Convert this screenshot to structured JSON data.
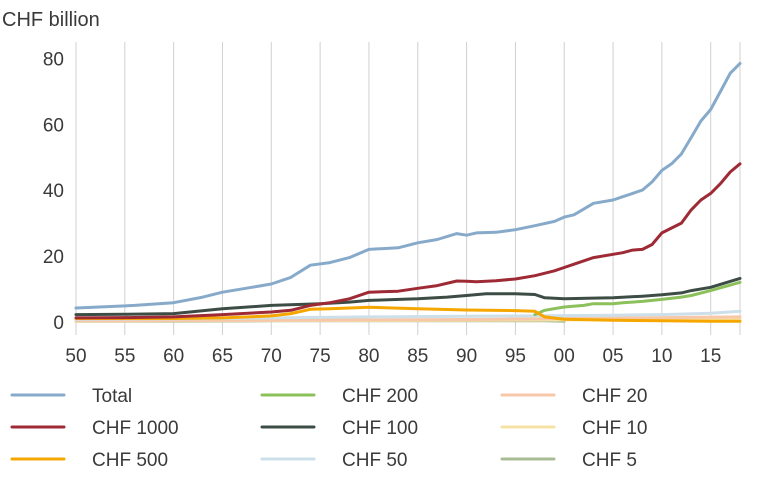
{
  "chart_data": {
    "type": "line",
    "y_unit_label": "CHF billion",
    "xlabel": "",
    "ylabel": "",
    "x_range": [
      1950,
      2018
    ],
    "ylim": [
      -4,
      85
    ],
    "grid": "vertical",
    "legend_position": "bottom",
    "x_ticks": [
      {
        "value": 1950,
        "label": "50"
      },
      {
        "value": 1955,
        "label": "55"
      },
      {
        "value": 1960,
        "label": "60"
      },
      {
        "value": 1965,
        "label": "65"
      },
      {
        "value": 1970,
        "label": "70"
      },
      {
        "value": 1975,
        "label": "75"
      },
      {
        "value": 1980,
        "label": "80"
      },
      {
        "value": 1985,
        "label": "85"
      },
      {
        "value": 1990,
        "label": "90"
      },
      {
        "value": 1995,
        "label": "95"
      },
      {
        "value": 2000,
        "label": "00"
      },
      {
        "value": 2005,
        "label": "05"
      },
      {
        "value": 2010,
        "label": "10"
      },
      {
        "value": 2015,
        "label": "15"
      }
    ],
    "y_ticks": [
      {
        "value": 0,
        "label": "0"
      },
      {
        "value": 20,
        "label": "20"
      },
      {
        "value": 40,
        "label": "40"
      },
      {
        "value": 60,
        "label": "60"
      },
      {
        "value": 80,
        "label": "80"
      }
    ],
    "series": [
      {
        "name": "Total",
        "color": "#87aacb",
        "points": [
          [
            1950,
            4.2
          ],
          [
            1953,
            4.6
          ],
          [
            1956,
            5.0
          ],
          [
            1960,
            5.8
          ],
          [
            1963,
            7.5
          ],
          [
            1965,
            9.0
          ],
          [
            1968,
            10.5
          ],
          [
            1970,
            11.5
          ],
          [
            1972,
            13.5
          ],
          [
            1974,
            17.2
          ],
          [
            1976,
            18.0
          ],
          [
            1978,
            19.5
          ],
          [
            1980,
            22.0
          ],
          [
            1983,
            22.5
          ],
          [
            1985,
            24.0
          ],
          [
            1987,
            25.0
          ],
          [
            1989,
            26.8
          ],
          [
            1990,
            26.3
          ],
          [
            1991,
            27.0
          ],
          [
            1993,
            27.2
          ],
          [
            1995,
            28.0
          ],
          [
            1997,
            29.2
          ],
          [
            1999,
            30.5
          ],
          [
            2000,
            31.8
          ],
          [
            2001,
            32.5
          ],
          [
            2003,
            36.0
          ],
          [
            2005,
            37.0
          ],
          [
            2006,
            38.0
          ],
          [
            2007,
            39.0
          ],
          [
            2008,
            40.0
          ],
          [
            2009,
            42.5
          ],
          [
            2010,
            46.0
          ],
          [
            2011,
            48.0
          ],
          [
            2012,
            51.0
          ],
          [
            2013,
            56.0
          ],
          [
            2014,
            61.0
          ],
          [
            2015,
            64.5
          ],
          [
            2016,
            70.0
          ],
          [
            2017,
            75.5
          ],
          [
            2018,
            78.5
          ]
        ]
      },
      {
        "name": "CHF 1000",
        "color": "#9e2a35",
        "points": [
          [
            1950,
            1.2
          ],
          [
            1955,
            1.3
          ],
          [
            1960,
            1.5
          ],
          [
            1965,
            2.2
          ],
          [
            1970,
            3.0
          ],
          [
            1972,
            3.5
          ],
          [
            1974,
            5.0
          ],
          [
            1976,
            5.8
          ],
          [
            1978,
            7.0
          ],
          [
            1980,
            9.0
          ],
          [
            1983,
            9.3
          ],
          [
            1985,
            10.2
          ],
          [
            1987,
            11.0
          ],
          [
            1989,
            12.4
          ],
          [
            1990,
            12.3
          ],
          [
            1991,
            12.2
          ],
          [
            1993,
            12.5
          ],
          [
            1995,
            13.0
          ],
          [
            1997,
            14.0
          ],
          [
            1999,
            15.5
          ],
          [
            2000,
            16.5
          ],
          [
            2001,
            17.5
          ],
          [
            2003,
            19.5
          ],
          [
            2005,
            20.5
          ],
          [
            2006,
            21.0
          ],
          [
            2007,
            21.8
          ],
          [
            2008,
            22.0
          ],
          [
            2009,
            23.5
          ],
          [
            2010,
            27.0
          ],
          [
            2011,
            28.5
          ],
          [
            2012,
            30.0
          ],
          [
            2013,
            34.0
          ],
          [
            2014,
            37.0
          ],
          [
            2015,
            39.0
          ],
          [
            2016,
            42.0
          ],
          [
            2017,
            45.5
          ],
          [
            2018,
            48.0
          ]
        ]
      },
      {
        "name": "CHF 500",
        "color": "#f5a700",
        "points": [
          [
            1950,
            1.0
          ],
          [
            1960,
            1.0
          ],
          [
            1965,
            1.2
          ],
          [
            1970,
            1.8
          ],
          [
            1972,
            2.5
          ],
          [
            1974,
            3.8
          ],
          [
            1976,
            4.0
          ],
          [
            1980,
            4.4
          ],
          [
            1985,
            4.0
          ],
          [
            1990,
            3.6
          ],
          [
            1995,
            3.4
          ],
          [
            1997,
            3.2
          ],
          [
            1998,
            1.5
          ],
          [
            2000,
            0.8
          ],
          [
            2005,
            0.5
          ],
          [
            2010,
            0.3
          ],
          [
            2015,
            0.2
          ],
          [
            2018,
            0.2
          ]
        ]
      },
      {
        "name": "CHF 200",
        "color": "#8cc05a",
        "points": [
          [
            1997,
            2.2
          ],
          [
            1998,
            3.5
          ],
          [
            2000,
            4.5
          ],
          [
            2002,
            5.0
          ],
          [
            2003,
            5.5
          ],
          [
            2005,
            5.5
          ],
          [
            2006,
            5.8
          ],
          [
            2008,
            6.2
          ],
          [
            2010,
            6.8
          ],
          [
            2012,
            7.5
          ],
          [
            2013,
            8.0
          ],
          [
            2015,
            9.5
          ],
          [
            2018,
            12.0
          ]
        ]
      },
      {
        "name": "CHF 100",
        "color": "#3d4d45",
        "points": [
          [
            1950,
            2.2
          ],
          [
            1955,
            2.3
          ],
          [
            1960,
            2.5
          ],
          [
            1965,
            4.0
          ],
          [
            1970,
            5.0
          ],
          [
            1975,
            5.5
          ],
          [
            1978,
            6.0
          ],
          [
            1980,
            6.5
          ],
          [
            1985,
            7.0
          ],
          [
            1988,
            7.5
          ],
          [
            1990,
            8.0
          ],
          [
            1992,
            8.5
          ],
          [
            1995,
            8.5
          ],
          [
            1997,
            8.3
          ],
          [
            1998,
            7.3
          ],
          [
            2000,
            7.0
          ],
          [
            2003,
            7.2
          ],
          [
            2005,
            7.3
          ],
          [
            2008,
            7.8
          ],
          [
            2010,
            8.2
          ],
          [
            2012,
            8.8
          ],
          [
            2013,
            9.5
          ],
          [
            2015,
            10.5
          ],
          [
            2018,
            13.2
          ]
        ]
      },
      {
        "name": "CHF 50",
        "color": "#cde0ea",
        "points": [
          [
            1950,
            0.8
          ],
          [
            1960,
            0.9
          ],
          [
            1970,
            1.2
          ],
          [
            1980,
            1.5
          ],
          [
            1990,
            1.7
          ],
          [
            2000,
            1.9
          ],
          [
            2005,
            2.0
          ],
          [
            2010,
            2.2
          ],
          [
            2015,
            2.6
          ],
          [
            2018,
            3.2
          ]
        ]
      },
      {
        "name": "CHF 20",
        "color": "#f6c7a8",
        "points": [
          [
            1950,
            0.3
          ],
          [
            1960,
            0.4
          ],
          [
            1970,
            0.5
          ],
          [
            1980,
            0.6
          ],
          [
            1990,
            0.7
          ],
          [
            2000,
            1.0
          ],
          [
            2010,
            1.3
          ],
          [
            2018,
            1.5
          ]
        ]
      },
      {
        "name": "CHF 10",
        "color": "#f7e2a6",
        "points": [
          [
            1950,
            0.2
          ],
          [
            1960,
            0.3
          ],
          [
            1970,
            0.4
          ],
          [
            1980,
            0.4
          ],
          [
            1990,
            0.5
          ],
          [
            2000,
            0.6
          ],
          [
            2010,
            0.8
          ],
          [
            2018,
            0.9
          ]
        ]
      },
      {
        "name": "CHF 5",
        "color": "#a9bd95",
        "points": [
          [
            1950,
            0.2
          ],
          [
            1960,
            0.2
          ],
          [
            1970,
            0.3
          ],
          [
            1980,
            0.3
          ],
          [
            1990,
            0.3
          ],
          [
            1998,
            0.3
          ],
          [
            2000,
            0.2
          ]
        ]
      }
    ]
  }
}
